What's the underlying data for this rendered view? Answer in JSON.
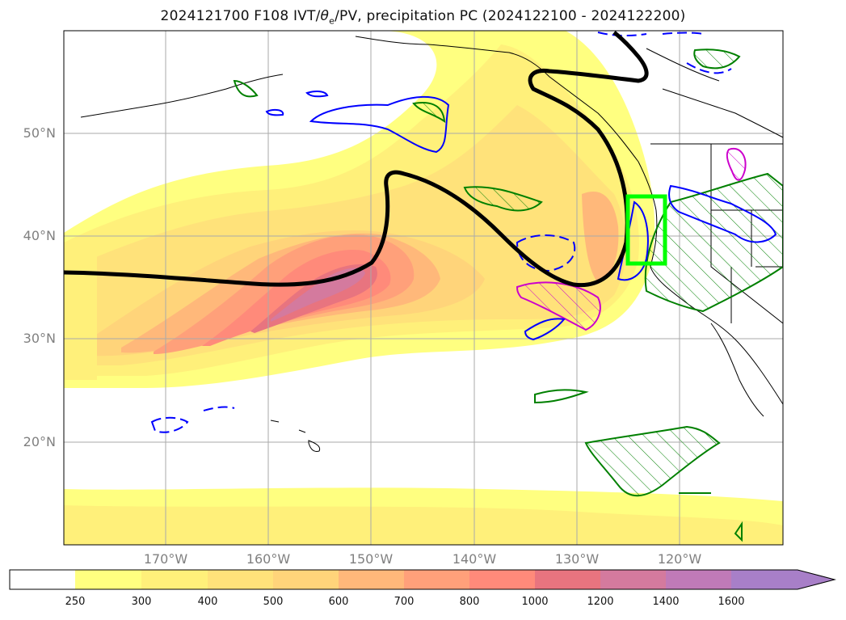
{
  "title_prefix": "2024121700 F108 IVT/",
  "title_theta": "θ",
  "title_sub": "e",
  "title_suffix": "/PV, precipitation PC (2024122100 - 2024122200)",
  "map": {
    "lat_labels": [
      "50°N",
      "40°N",
      "30°N",
      "20°N"
    ],
    "lon_labels": [
      "170°W",
      "160°W",
      "150°W",
      "140°W",
      "130°W",
      "120°W"
    ],
    "box_color": "#00ff00",
    "pv_contour_color": "#000000",
    "positive_contour_color": "#0000ff",
    "precip_contour_color": "#008000",
    "magenta_contour_color": "#cc00cc"
  },
  "colorbar": {
    "ticks": [
      "250",
      "300",
      "400",
      "500",
      "600",
      "700",
      "800",
      "1000",
      "1200",
      "1400",
      "1600"
    ],
    "colors": [
      "#ffffff",
      "#ffff80",
      "#fff07a",
      "#ffe27a",
      "#ffd47a",
      "#ffb87a",
      "#ffa07a",
      "#ff8a7a",
      "#e8747f",
      "#d47a9e",
      "#c07ab8",
      "#a87fc8"
    ]
  }
}
